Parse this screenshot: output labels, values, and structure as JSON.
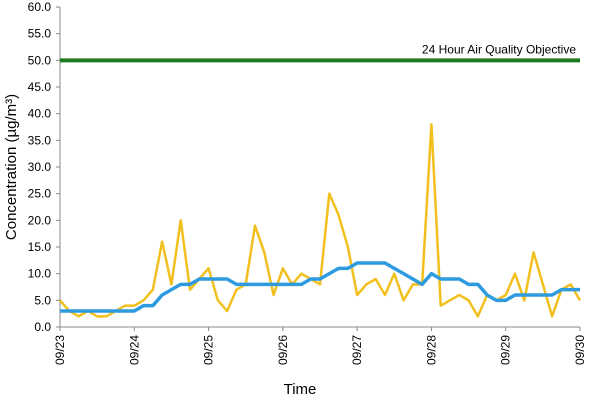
{
  "chart_data": {
    "type": "line",
    "xlabel": "Time",
    "ylabel": "Concentration (µg/m³)",
    "xlim": [
      0,
      7
    ],
    "xticks": [
      {
        "value": 0,
        "label": "09/23"
      },
      {
        "value": 1,
        "label": "09/24"
      },
      {
        "value": 2,
        "label": "09/25"
      },
      {
        "value": 3,
        "label": "09/26"
      },
      {
        "value": 4,
        "label": "09/27"
      },
      {
        "value": 5,
        "label": "09/28"
      },
      {
        "value": 6,
        "label": "09/29"
      },
      {
        "value": 7,
        "label": "09/30"
      }
    ],
    "ylim": [
      0,
      60
    ],
    "yticks": [
      {
        "value": 0,
        "label": "0.0"
      },
      {
        "value": 5,
        "label": "5.0"
      },
      {
        "value": 10,
        "label": "10.0"
      },
      {
        "value": 15,
        "label": "15.0"
      },
      {
        "value": 20,
        "label": "20.0"
      },
      {
        "value": 25,
        "label": "25.0"
      },
      {
        "value": 30,
        "label": "30.0"
      },
      {
        "value": 35,
        "label": "35.0"
      },
      {
        "value": 40,
        "label": "40.0"
      },
      {
        "value": 45,
        "label": "45.0"
      },
      {
        "value": 50,
        "label": "50.0"
      },
      {
        "value": 55,
        "label": "55.0"
      },
      {
        "value": 60,
        "label": "60.0"
      }
    ],
    "grid": false,
    "x": [
      0,
      0.125,
      0.25,
      0.375,
      0.5,
      0.625,
      0.75,
      0.875,
      1,
      1.125,
      1.25,
      1.375,
      1.5,
      1.625,
      1.75,
      1.875,
      2,
      2.125,
      2.25,
      2.375,
      2.5,
      2.625,
      2.75,
      2.875,
      3,
      3.125,
      3.25,
      3.375,
      3.5,
      3.625,
      3.75,
      3.875,
      4,
      4.125,
      4.25,
      4.375,
      4.5,
      4.625,
      4.75,
      4.875,
      5,
      5.125,
      5.25,
      5.375,
      5.5,
      5.625,
      5.75,
      5.875,
      6,
      6.125,
      6.25,
      6.375,
      6.5,
      6.625,
      6.75,
      6.875,
      7
    ],
    "series": [
      {
        "color": "#f2c01e",
        "values": [
          5,
          3,
          2,
          3,
          2,
          2,
          3,
          4,
          4,
          5,
          7,
          16,
          8,
          20,
          7,
          9,
          11,
          5,
          3,
          7,
          8,
          19,
          14,
          6,
          11,
          8,
          10,
          9,
          8,
          25,
          21,
          15,
          6,
          8,
          9,
          6,
          10,
          5,
          8,
          8,
          38,
          4,
          5,
          6,
          5,
          2,
          6,
          5,
          6,
          10,
          5,
          14,
          8,
          2,
          7,
          8,
          5
        ]
      },
      {
        "color": "#2e9be0",
        "values": [
          3,
          3,
          3,
          3,
          3,
          3,
          3,
          3,
          3,
          4,
          4,
          6,
          7,
          8,
          8,
          9,
          9,
          9,
          9,
          8,
          8,
          8,
          8,
          8,
          8,
          8,
          8,
          9,
          9,
          10,
          11,
          11,
          12,
          12,
          12,
          12,
          11,
          10,
          9,
          8,
          10,
          9,
          9,
          9,
          8,
          8,
          6,
          5,
          5,
          6,
          6,
          6,
          6,
          6,
          7,
          7,
          7
        ]
      }
    ],
    "objective": {
      "label": "24 Hour Air Quality Objective",
      "value": 50,
      "color": "#1e7a1e"
    }
  }
}
